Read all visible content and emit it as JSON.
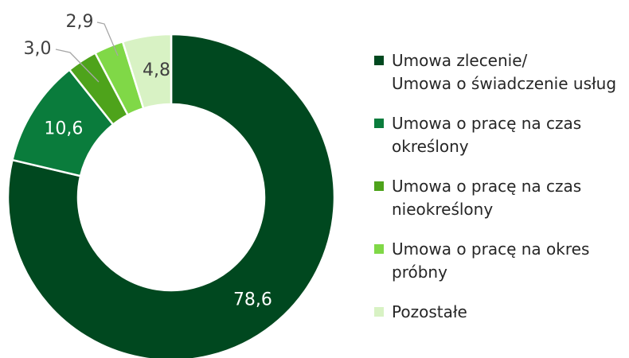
{
  "chart_data": {
    "type": "pie",
    "subtype": "donut",
    "categories": [
      [
        "Umowa zlecenie/",
        "Umowa o świadczenie usług"
      ],
      [
        "Umowa o pracę na czas",
        "określony"
      ],
      [
        "Umowa o pracę na czas",
        "nieokreślony"
      ],
      [
        "Umowa o pracę na okres",
        "próbny"
      ],
      [
        "Pozostałe"
      ]
    ],
    "values": [
      78.6,
      10.6,
      3.0,
      2.9,
      4.8
    ],
    "data_labels": [
      "78,6",
      "10,6",
      "3,0",
      "2,9",
      "4,8"
    ],
    "colors": [
      "#00481f",
      "#0a7c3c",
      "#4ea31b",
      "#80d847",
      "#d8f2c4"
    ],
    "legend_position": "right"
  }
}
